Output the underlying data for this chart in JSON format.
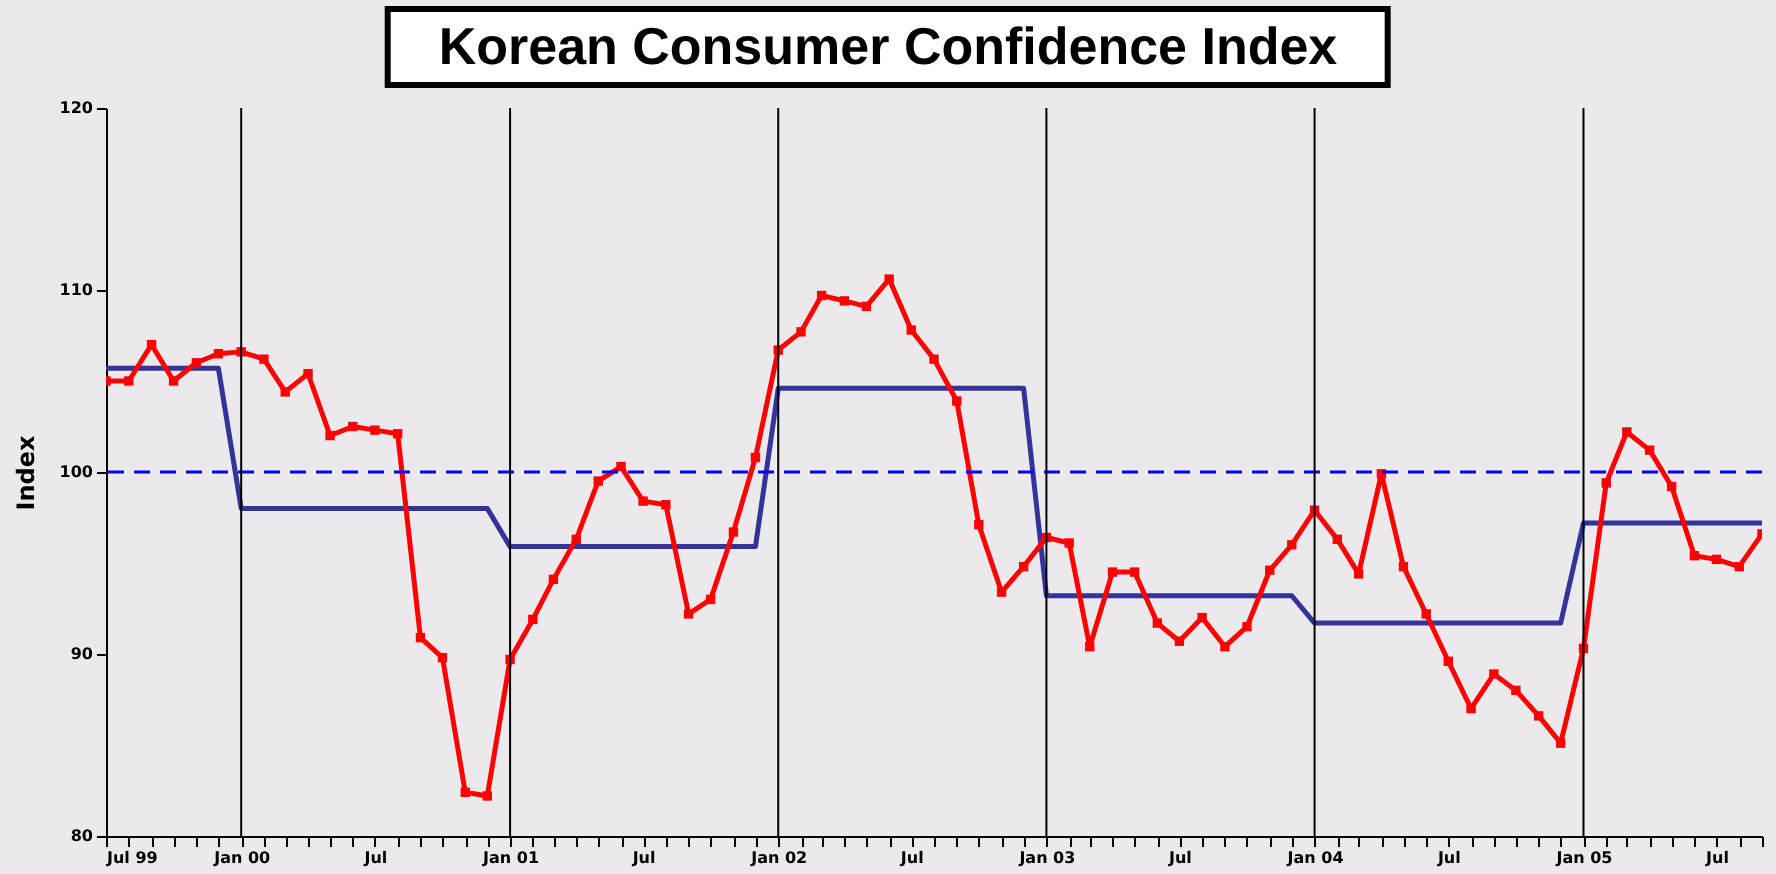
{
  "chart_data": {
    "type": "line",
    "title": "Korean Consumer Confidence Index",
    "ylabel": "Index",
    "x": [
      "1999-07",
      "1999-08",
      "1999-09",
      "1999-10",
      "1999-11",
      "1999-12",
      "2000-01",
      "2000-02",
      "2000-03",
      "2000-04",
      "2000-05",
      "2000-06",
      "2000-07",
      "2000-08",
      "2000-09",
      "2000-10",
      "2000-11",
      "2000-12",
      "2001-01",
      "2001-02",
      "2001-03",
      "2001-04",
      "2001-05",
      "2001-06",
      "2001-07",
      "2001-08",
      "2001-09",
      "2001-10",
      "2001-11",
      "2001-12",
      "2002-01",
      "2002-02",
      "2002-03",
      "2002-04",
      "2002-05",
      "2002-06",
      "2002-07",
      "2002-08",
      "2002-09",
      "2002-10",
      "2002-11",
      "2002-12",
      "2003-01",
      "2003-02",
      "2003-03",
      "2003-04",
      "2003-05",
      "2003-06",
      "2003-07",
      "2003-08",
      "2003-09",
      "2003-10",
      "2003-11",
      "2003-12",
      "2004-01",
      "2004-02",
      "2004-03",
      "2004-04",
      "2004-05",
      "2004-06",
      "2004-07",
      "2004-08",
      "2004-09",
      "2004-10",
      "2004-11",
      "2004-12",
      "2005-01",
      "2005-02",
      "2005-03",
      "2005-04",
      "2005-05",
      "2005-06",
      "2005-07",
      "2005-08",
      "2005-09"
    ],
    "series": [
      {
        "color": "#333399",
        "marker": "none",
        "values": [
          105.7,
          105.7,
          105.7,
          105.7,
          105.7,
          105.7,
          98.0,
          98.0,
          98.0,
          98.0,
          98.0,
          98.0,
          98.0,
          98.0,
          98.0,
          98.0,
          98.0,
          98.0,
          95.9,
          95.9,
          95.9,
          95.9,
          95.9,
          95.9,
          95.9,
          95.9,
          95.9,
          95.9,
          95.9,
          95.9,
          104.6,
          104.6,
          104.6,
          104.6,
          104.6,
          104.6,
          104.6,
          104.6,
          104.6,
          104.6,
          104.6,
          104.6,
          93.2,
          93.2,
          93.2,
          93.2,
          93.2,
          93.2,
          93.2,
          93.2,
          93.2,
          93.2,
          93.2,
          93.2,
          91.7,
          91.7,
          91.7,
          91.7,
          91.7,
          91.7,
          91.7,
          91.7,
          91.7,
          91.7,
          91.7,
          91.7,
          97.2,
          97.2,
          97.2,
          97.2,
          97.2,
          97.2,
          97.2,
          97.2,
          97.2
        ]
      },
      {
        "color": "#ff0000",
        "marker": "square",
        "values": [
          105.0,
          105.0,
          107.0,
          105.0,
          106.0,
          106.5,
          106.6,
          106.2,
          104.4,
          105.4,
          102.0,
          102.5,
          102.3,
          102.1,
          90.9,
          89.8,
          82.4,
          82.2,
          89.7,
          91.9,
          94.1,
          96.3,
          99.5,
          100.3,
          98.4,
          98.2,
          92.2,
          93.0,
          96.7,
          100.8,
          106.7,
          107.7,
          109.7,
          109.4,
          109.1,
          110.6,
          107.8,
          106.2,
          103.9,
          97.1,
          93.4,
          94.8,
          96.4,
          96.1,
          90.4,
          94.5,
          94.5,
          91.7,
          90.7,
          92.0,
          90.4,
          91.5,
          94.6,
          96.0,
          97.9,
          96.3,
          94.4,
          99.9,
          94.8,
          92.2,
          89.6,
          87.0,
          88.9,
          88.0,
          86.6,
          85.1,
          90.3,
          99.4,
          102.2,
          101.2,
          99.2,
          95.4,
          95.2,
          94.8,
          96.6
        ]
      }
    ],
    "xlim": [
      "1999-07",
      "2005-09"
    ],
    "xticks": [
      {
        "value": "1999-07",
        "label": "Jul 99"
      },
      {
        "value": "1999-08",
        "label": null
      },
      {
        "value": "1999-09",
        "label": null
      },
      {
        "value": "1999-10",
        "label": null
      },
      {
        "value": "1999-11",
        "label": null
      },
      {
        "value": "1999-12",
        "label": null
      },
      {
        "value": "2000-01",
        "label": "Jan 00"
      },
      {
        "value": "2000-02",
        "label": null
      },
      {
        "value": "2000-03",
        "label": null
      },
      {
        "value": "2000-04",
        "label": null
      },
      {
        "value": "2000-05",
        "label": null
      },
      {
        "value": "2000-06",
        "label": null
      },
      {
        "value": "2000-07",
        "label": "Jul"
      },
      {
        "value": "2000-08",
        "label": null
      },
      {
        "value": "2000-09",
        "label": null
      },
      {
        "value": "2000-10",
        "label": null
      },
      {
        "value": "2000-11",
        "label": null
      },
      {
        "value": "2000-12",
        "label": null
      },
      {
        "value": "2001-01",
        "label": "Jan 01"
      },
      {
        "value": "2001-02",
        "label": null
      },
      {
        "value": "2001-03",
        "label": null
      },
      {
        "value": "2001-04",
        "label": null
      },
      {
        "value": "2001-05",
        "label": null
      },
      {
        "value": "2001-06",
        "label": null
      },
      {
        "value": "2001-07",
        "label": "Jul"
      },
      {
        "value": "2001-08",
        "label": null
      },
      {
        "value": "2001-09",
        "label": null
      },
      {
        "value": "2001-10",
        "label": null
      },
      {
        "value": "2001-11",
        "label": null
      },
      {
        "value": "2001-12",
        "label": null
      },
      {
        "value": "2002-01",
        "label": "Jan 02"
      },
      {
        "value": "2002-02",
        "label": null
      },
      {
        "value": "2002-03",
        "label": null
      },
      {
        "value": "2002-04",
        "label": null
      },
      {
        "value": "2002-05",
        "label": null
      },
      {
        "value": "2002-06",
        "label": null
      },
      {
        "value": "2002-07",
        "label": "Jul"
      },
      {
        "value": "2002-08",
        "label": null
      },
      {
        "value": "2002-09",
        "label": null
      },
      {
        "value": "2002-10",
        "label": null
      },
      {
        "value": "2002-11",
        "label": null
      },
      {
        "value": "2002-12",
        "label": null
      },
      {
        "value": "2003-01",
        "label": "Jan 03"
      },
      {
        "value": "2003-02",
        "label": null
      },
      {
        "value": "2003-03",
        "label": null
      },
      {
        "value": "2003-04",
        "label": null
      },
      {
        "value": "2003-05",
        "label": null
      },
      {
        "value": "2003-06",
        "label": null
      },
      {
        "value": "2003-07",
        "label": "Jul"
      },
      {
        "value": "2003-08",
        "label": null
      },
      {
        "value": "2003-09",
        "label": null
      },
      {
        "value": "2003-10",
        "label": null
      },
      {
        "value": "2003-11",
        "label": null
      },
      {
        "value": "2003-12",
        "label": null
      },
      {
        "value": "2004-01",
        "label": "Jan 04"
      },
      {
        "value": "2004-02",
        "label": null
      },
      {
        "value": "2004-03",
        "label": null
      },
      {
        "value": "2004-04",
        "label": null
      },
      {
        "value": "2004-05",
        "label": null
      },
      {
        "value": "2004-06",
        "label": null
      },
      {
        "value": "2004-07",
        "label": "Jul"
      },
      {
        "value": "2004-08",
        "label": null
      },
      {
        "value": "2004-09",
        "label": null
      },
      {
        "value": "2004-10",
        "label": null
      },
      {
        "value": "2004-11",
        "label": null
      },
      {
        "value": "2004-12",
        "label": null
      },
      {
        "value": "2005-01",
        "label": "Jan 05"
      },
      {
        "value": "2005-02",
        "label": null
      },
      {
        "value": "2005-03",
        "label": null
      },
      {
        "value": "2005-04",
        "label": null
      },
      {
        "value": "2005-05",
        "label": null
      },
      {
        "value": "2005-06",
        "label": null
      },
      {
        "value": "2005-07",
        "label": "Jul"
      },
      {
        "value": "2005-08",
        "label": null
      },
      {
        "value": "2005-09",
        "label": null
      }
    ],
    "ylim": [
      80,
      120
    ],
    "yticks": [
      80,
      90,
      100,
      110,
      120
    ],
    "grid": false,
    "line_style": "solid",
    "ref_lines": [
      {
        "axis": "y",
        "value": 100,
        "color": "#0000ff",
        "line_style": "dashed"
      },
      {
        "axis": "x",
        "value": "2000-01",
        "color": "#000000"
      },
      {
        "axis": "x",
        "value": "2001-01",
        "color": "#000000"
      },
      {
        "axis": "x",
        "value": "2002-01",
        "color": "#000000"
      },
      {
        "axis": "x",
        "value": "2003-01",
        "color": "#000000"
      },
      {
        "axis": "x",
        "value": "2004-01",
        "color": "#000000"
      },
      {
        "axis": "x",
        "value": "2005-01",
        "color": "#000000"
      }
    ]
  }
}
